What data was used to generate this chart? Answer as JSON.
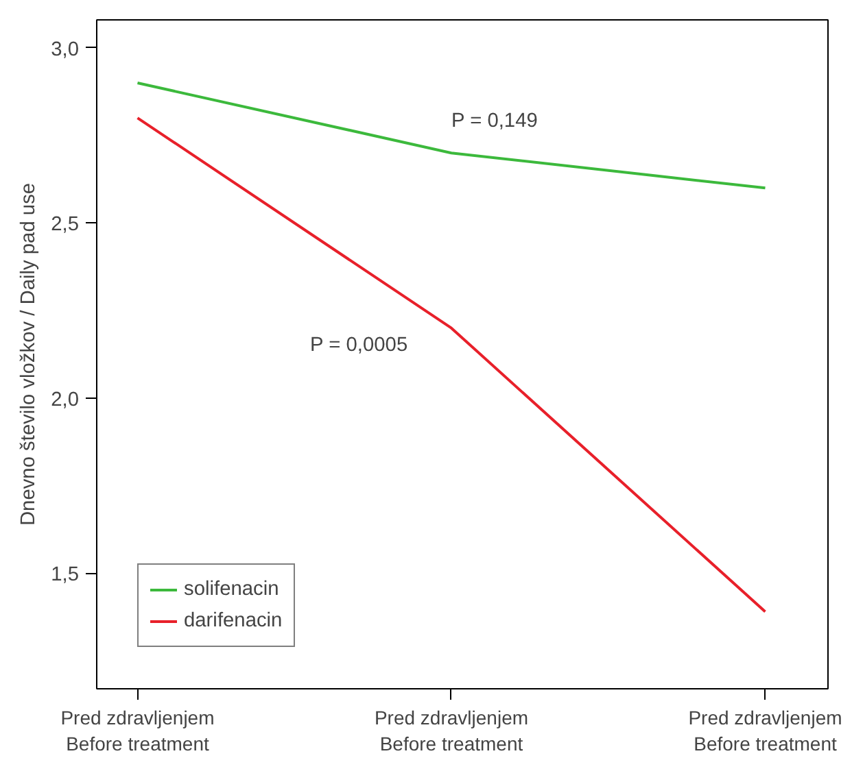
{
  "chart_data": {
    "type": "line",
    "ylabel": "Dnevno število vložkov / Daily pad use",
    "categories": [
      "Pred zdravljenjem\nBefore treatment",
      "Pred zdravljenjem\nBefore treatment",
      "Pred zdravljenjem\nBefore treatment"
    ],
    "series": [
      {
        "name": "solifenacin",
        "color": "#3cb93c",
        "values": [
          2.9,
          2.7,
          2.6
        ]
      },
      {
        "name": "darifenacin",
        "color": "#e8202a",
        "values": [
          2.8,
          2.2,
          1.39
        ]
      }
    ],
    "ylim": [
      1.17,
      3.08
    ],
    "yticks": [
      {
        "value": 1.5,
        "label": "1,5"
      },
      {
        "value": 2.0,
        "label": "2,0"
      },
      {
        "value": 2.5,
        "label": "2,5"
      },
      {
        "value": 3.0,
        "label": "3,0"
      }
    ],
    "annotations": [
      "P = 0,149",
      "P = 0,0005"
    ],
    "grid": false,
    "legend": "bottom left",
    "marker": "none",
    "line_style": "solid"
  }
}
